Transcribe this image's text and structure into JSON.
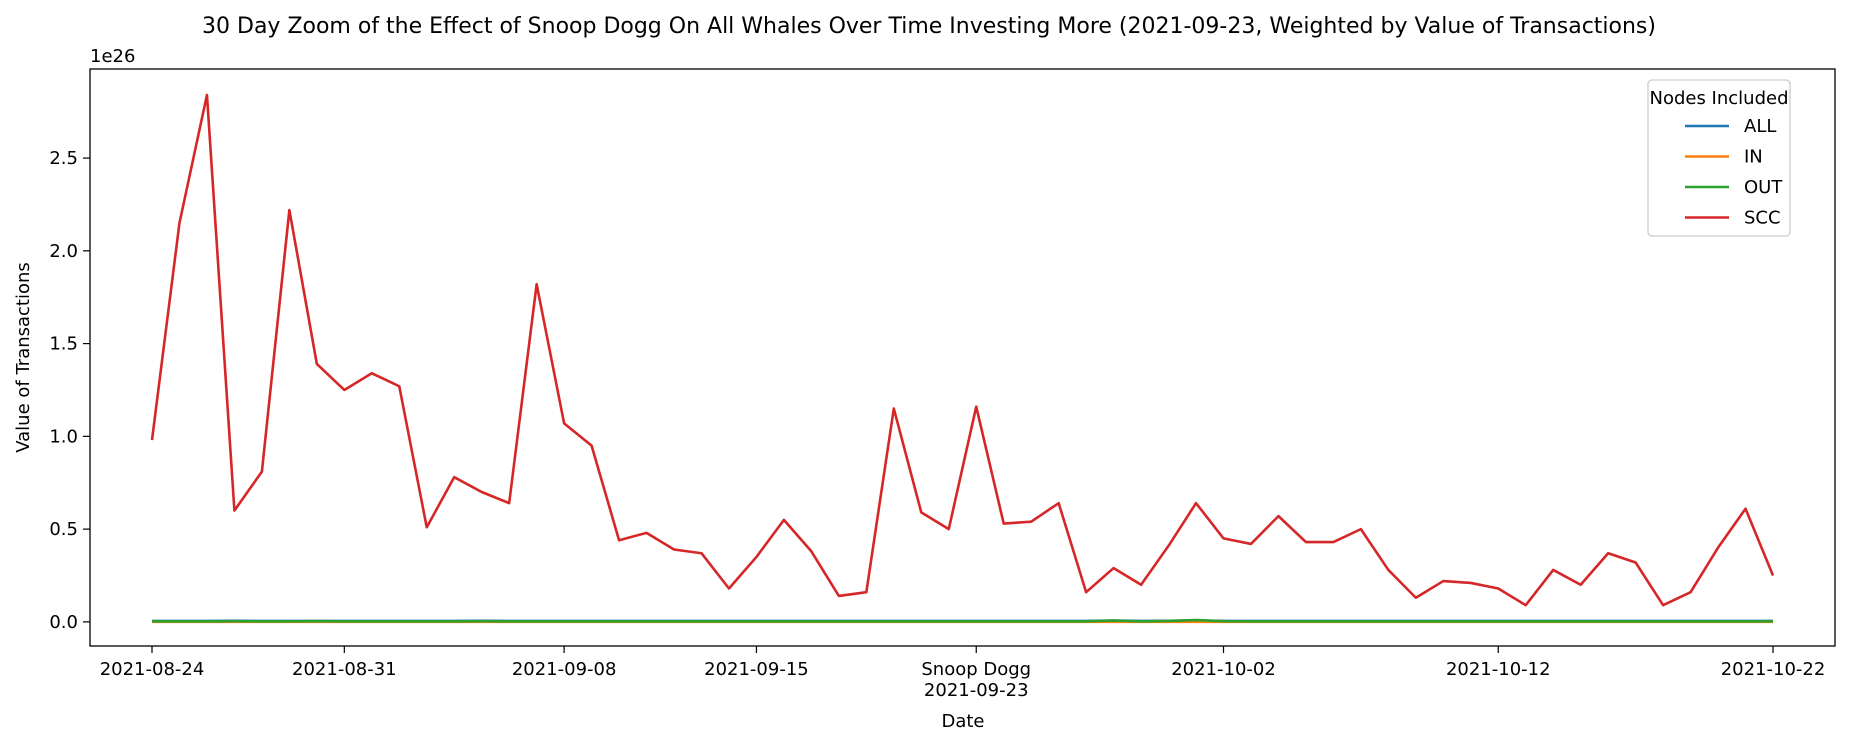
{
  "chart_data": {
    "type": "line",
    "title": "30 Day Zoom of the Effect of Snoop Dogg On All Whales Over Time Investing More (2021-09-23, Weighted by Value of Transactions)",
    "xlabel": "Date",
    "ylabel": "Value of Transactions",
    "y_scale_label": "1e26",
    "y_multiplier": "1e26",
    "ylim": [
      -0.13,
      2.98
    ],
    "yticks": [
      0.0,
      0.5,
      1.0,
      1.5,
      2.0,
      2.5
    ],
    "ytick_labels": [
      "0.0",
      "0.5",
      "1.0",
      "1.5",
      "2.0",
      "2.5"
    ],
    "xticks": [
      {
        "date": "2021-08-24",
        "label": "2021-08-24"
      },
      {
        "date": "2021-08-31",
        "label": "2021-08-31"
      },
      {
        "date": "2021-09-08",
        "label": "2021-09-08"
      },
      {
        "date": "2021-09-15",
        "label": "2021-09-15"
      },
      {
        "date": "2021-09-23",
        "label": "Snoop Dogg",
        "label2": "2021-09-23"
      },
      {
        "date": "2021-10-02",
        "label": "2021-10-02"
      },
      {
        "date": "2021-10-12",
        "label": "2021-10-12"
      },
      {
        "date": "2021-10-22",
        "label": "2021-10-22"
      }
    ],
    "grid": false,
    "legend": {
      "title": "Nodes Included",
      "placement": "top-right"
    },
    "x": [
      "2021-08-24",
      "2021-08-25",
      "2021-08-26",
      "2021-08-27",
      "2021-08-28",
      "2021-08-29",
      "2021-08-30",
      "2021-08-31",
      "2021-09-01",
      "2021-09-02",
      "2021-09-03",
      "2021-09-04",
      "2021-09-05",
      "2021-09-06",
      "2021-09-07",
      "2021-09-08",
      "2021-09-09",
      "2021-09-10",
      "2021-09-11",
      "2021-09-12",
      "2021-09-13",
      "2021-09-14",
      "2021-09-15",
      "2021-09-16",
      "2021-09-17",
      "2021-09-18",
      "2021-09-19",
      "2021-09-20",
      "2021-09-21",
      "2021-09-22",
      "2021-09-23",
      "2021-09-24",
      "2021-09-25",
      "2021-09-26",
      "2021-09-27",
      "2021-09-28",
      "2021-09-29",
      "2021-09-30",
      "2021-10-01",
      "2021-10-02",
      "2021-10-03",
      "2021-10-04",
      "2021-10-05",
      "2021-10-06",
      "2021-10-07",
      "2021-10-08",
      "2021-10-09",
      "2021-10-10",
      "2021-10-11",
      "2021-10-12",
      "2021-10-13",
      "2021-10-14",
      "2021-10-15",
      "2021-10-16",
      "2021-10-17",
      "2021-10-18",
      "2021-10-19",
      "2021-10-20",
      "2021-10-21",
      "2021-10-22"
    ],
    "series": [
      {
        "name": "ALL",
        "color": "#1f77b4",
        "values": [
          0.005,
          0.005,
          0.005,
          0.006,
          0.005,
          0.005,
          0.005,
          0.005,
          0.005,
          0.005,
          0.005,
          0.005,
          0.006,
          0.005,
          0.005,
          0.005,
          0.005,
          0.005,
          0.005,
          0.005,
          0.005,
          0.005,
          0.005,
          0.005,
          0.005,
          0.005,
          0.005,
          0.005,
          0.005,
          0.005,
          0.005,
          0.005,
          0.005,
          0.005,
          0.005,
          0.007,
          0.005,
          0.006,
          0.008,
          0.005,
          0.005,
          0.005,
          0.005,
          0.005,
          0.005,
          0.005,
          0.005,
          0.005,
          0.005,
          0.005,
          0.005,
          0.005,
          0.005,
          0.005,
          0.005,
          0.005,
          0.005,
          0.005,
          0.005,
          0.005
        ]
      },
      {
        "name": "IN",
        "color": "#ff7f0e",
        "values": [
          0.0,
          0.0,
          0.0,
          0.0,
          0.0,
          0.0,
          0.0,
          0.0,
          0.0,
          0.0,
          0.0,
          0.0,
          0.0,
          0.0,
          0.0,
          0.0,
          0.0,
          0.0,
          0.0,
          0.0,
          0.0,
          0.0,
          0.0,
          0.0,
          0.0,
          0.0,
          0.0,
          0.0,
          0.0,
          0.0,
          0.0,
          0.0,
          0.0,
          0.0,
          0.0,
          0.0,
          0.0,
          0.0,
          0.0,
          0.0,
          0.0,
          0.0,
          0.0,
          0.0,
          0.0,
          0.0,
          0.0,
          0.0,
          0.0,
          0.0,
          0.0,
          0.0,
          0.0,
          0.0,
          0.0,
          0.0,
          0.0,
          0.0,
          0.0,
          0.0
        ]
      },
      {
        "name": "OUT",
        "color": "#2ca02c",
        "values": [
          0.003,
          0.003,
          0.003,
          0.004,
          0.003,
          0.003,
          0.004,
          0.003,
          0.003,
          0.003,
          0.003,
          0.003,
          0.004,
          0.003,
          0.003,
          0.003,
          0.003,
          0.003,
          0.003,
          0.003,
          0.003,
          0.003,
          0.003,
          0.003,
          0.003,
          0.003,
          0.003,
          0.003,
          0.003,
          0.003,
          0.003,
          0.003,
          0.003,
          0.003,
          0.003,
          0.007,
          0.003,
          0.005,
          0.01,
          0.004,
          0.003,
          0.003,
          0.003,
          0.003,
          0.003,
          0.003,
          0.003,
          0.003,
          0.003,
          0.003,
          0.003,
          0.003,
          0.003,
          0.003,
          0.003,
          0.003,
          0.003,
          0.003,
          0.003,
          0.003
        ]
      },
      {
        "name": "SCC",
        "color": "#d62728",
        "values": [
          0.98,
          2.15,
          2.84,
          0.6,
          0.81,
          2.22,
          1.39,
          1.25,
          1.34,
          1.27,
          0.51,
          0.78,
          0.7,
          0.64,
          1.82,
          1.07,
          0.95,
          0.44,
          0.48,
          0.39,
          0.37,
          0.18,
          0.35,
          0.55,
          0.38,
          0.14,
          0.16,
          1.15,
          0.59,
          0.5,
          1.16,
          0.53,
          0.54,
          0.64,
          0.16,
          0.29,
          0.2,
          0.41,
          0.64,
          0.45,
          0.42,
          0.57,
          0.43,
          0.43,
          0.5,
          0.28,
          0.13,
          0.22,
          0.21,
          0.18,
          0.09,
          0.28,
          0.2,
          0.37,
          0.32,
          0.09,
          0.16,
          0.4,
          0.61,
          0.25
        ]
      }
    ]
  }
}
